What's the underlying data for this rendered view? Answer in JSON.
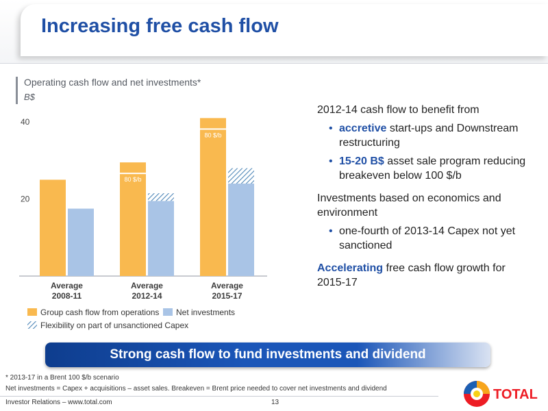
{
  "slide": {
    "title": "Increasing free cash flow",
    "page_number": "13",
    "footer_left": "Investor Relations – www.total.com",
    "logo_text": "TOTAL"
  },
  "chart_data": {
    "type": "bar",
    "title": "Operating cash flow and net investments*",
    "unit": "B$",
    "categories": [
      "Average\n2008-11",
      "Average\n2012-14",
      "Average\n2015-17"
    ],
    "ylim": [
      0,
      40
    ],
    "yticks": [
      20,
      40
    ],
    "series": [
      {
        "name": "Group cash flow from operations",
        "values": [
          25,
          29.5,
          41
        ],
        "color": "#f9b94f"
      },
      {
        "name": "Net investments",
        "values": [
          17.5,
          19.5,
          24
        ],
        "color": "#a9c4e6"
      },
      {
        "name": "Flexibility on part of unsanctioned Capex",
        "values": [
          0,
          2,
          4
        ],
        "color": "#4f87b8",
        "pattern": "hatched",
        "stacked_on": "Net investments"
      }
    ],
    "annotations": [
      {
        "category_index": 1,
        "text": "80 $/b"
      },
      {
        "category_index": 2,
        "text": "80 $/b"
      }
    ],
    "legend": [
      "Group cash flow from operations",
      "Net investments",
      "Flexibility on part of unsanctioned Capex"
    ],
    "legend_position": "bottom"
  },
  "commentary": {
    "intro": "2012-14 cash flow to benefit from",
    "bullet1_bold": "accretive",
    "bullet1_rest": " start-ups and Downstream restructuring",
    "bullet2_bold": "15-20 B$",
    "bullet2_rest": " asset sale program reducing breakeven below 100 $/b",
    "section2": "Investments based on economics and environment",
    "bullet3": "one-fourth of 2013-14 Capex not yet sanctioned",
    "conclusion_bold": "Accelerating",
    "conclusion_rest": " free cash flow growth for 2015-17"
  },
  "banner": {
    "text": "Strong cash flow to fund investments and dividend"
  },
  "footnotes": {
    "line1": "* 2013-17 in a Brent 100 $/b scenario",
    "line2": "Net investments = Capex + acquisitions – asset sales. Breakeven = Brent price needed to cover net investments and dividend"
  }
}
